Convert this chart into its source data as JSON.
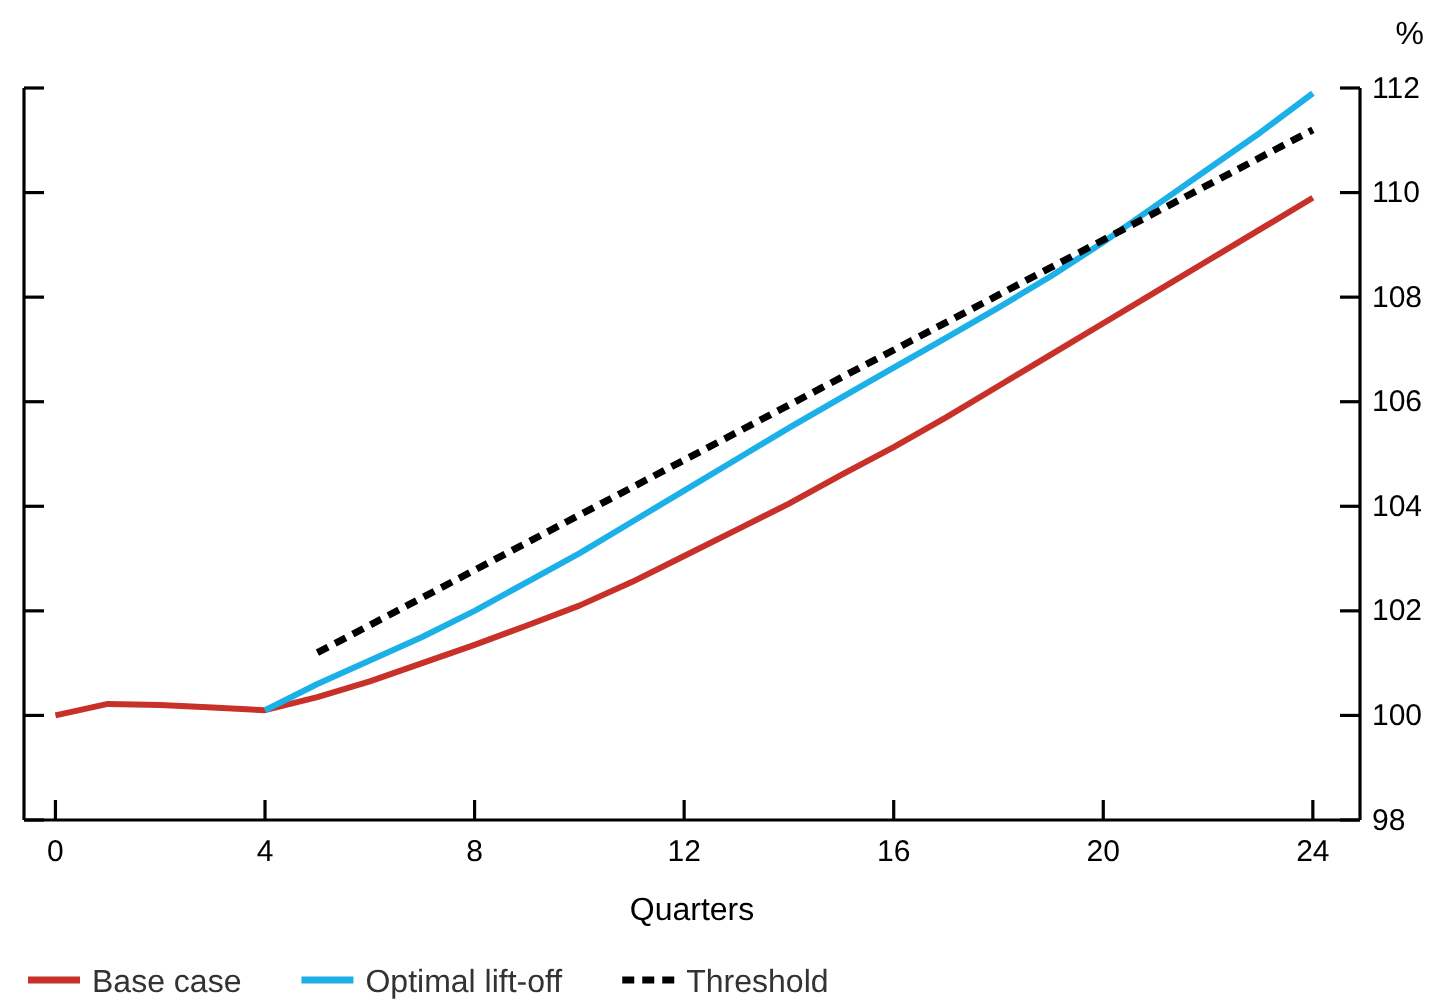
{
  "chart_data": {
    "type": "line",
    "xlabel": "Quarters",
    "ylabel": "%",
    "x": [
      0,
      1,
      2,
      3,
      4,
      5,
      6,
      7,
      8,
      9,
      10,
      11,
      12,
      13,
      14,
      15,
      16,
      17,
      18,
      19,
      20,
      21,
      22,
      23,
      24
    ],
    "xlim": [
      -0.6,
      24.9
    ],
    "xticks": [
      0,
      4,
      8,
      12,
      16,
      20,
      24
    ],
    "ylim": [
      98,
      112
    ],
    "yticks": [
      98,
      100,
      102,
      104,
      106,
      108,
      110,
      112
    ],
    "grid": false,
    "legend": "bottom",
    "series": [
      {
        "name": "Base case",
        "color": "#c8312a",
        "values": [
          100,
          100.22,
          100.2,
          100.15,
          100.1,
          100.35,
          100.65,
          101.0,
          101.35,
          101.72,
          102.1,
          102.55,
          103.05,
          103.55,
          104.05,
          104.6,
          105.13,
          105.7,
          106.3,
          106.9,
          107.5,
          108.1,
          108.7,
          109.3,
          109.9
        ]
      },
      {
        "name": "Optimal lift-off",
        "color": "#1cb0e8",
        "values": [
          null,
          null,
          null,
          null,
          100.1,
          100.6,
          101.05,
          101.5,
          102.0,
          102.55,
          103.1,
          103.7,
          104.3,
          104.9,
          105.5,
          106.08,
          106.65,
          107.22,
          107.8,
          108.4,
          109.05,
          109.75,
          110.45,
          111.15,
          111.9
        ]
      },
      {
        "name": "Threshold",
        "color": "#000000",
        "line_style": "dashed",
        "x": [
          5,
          24
        ],
        "values": [
          101.2,
          111.2
        ]
      }
    ]
  }
}
